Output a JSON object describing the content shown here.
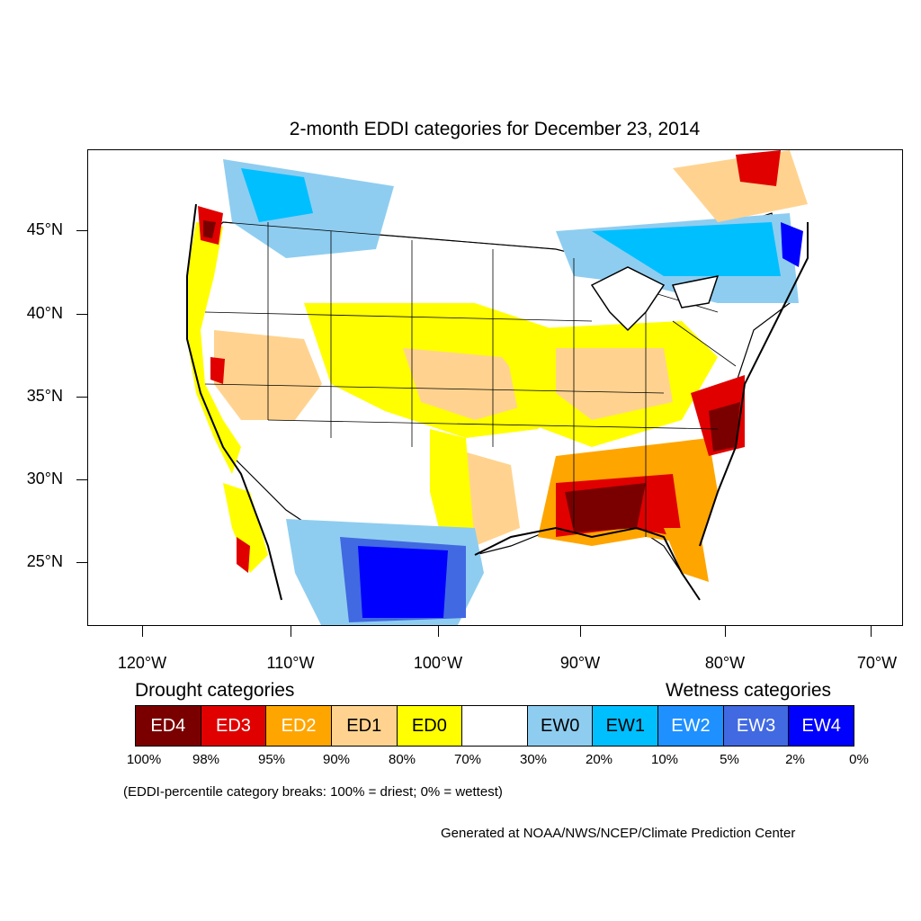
{
  "title": "2-month EDDI categories for December 23, 2014",
  "lat_labels": [
    "45°N",
    "40°N",
    "35°N",
    "30°N",
    "25°N"
  ],
  "lon_labels": [
    "120°W",
    "110°W",
    "100°W",
    "90°W",
    "80°W",
    "70°W"
  ],
  "legend": {
    "drought_heading": "Drought categories",
    "wetness_heading": "Wetness categories",
    "categories": [
      {
        "label": "ED4",
        "color": "#7a0000",
        "text_color": "#ffffff"
      },
      {
        "label": "ED3",
        "color": "#e00000",
        "text_color": "#ffffff"
      },
      {
        "label": "ED2",
        "color": "#ffa500",
        "text_color": "#ffffff"
      },
      {
        "label": "ED1",
        "color": "#ffd38f",
        "text_color": "#000000"
      },
      {
        "label": "ED0",
        "color": "#ffff00",
        "text_color": "#000000"
      },
      {
        "label": "",
        "color": "#ffffff",
        "text_color": "#000000"
      },
      {
        "label": "EW0",
        "color": "#8ecdf0",
        "text_color": "#000000"
      },
      {
        "label": "EW1",
        "color": "#00bfff",
        "text_color": "#000000"
      },
      {
        "label": "EW2",
        "color": "#1e90ff",
        "text_color": "#ffffff"
      },
      {
        "label": "EW3",
        "color": "#4169e1",
        "text_color": "#ffffff"
      },
      {
        "label": "EW4",
        "color": "#0000ff",
        "text_color": "#ffffff"
      }
    ],
    "breaks": [
      "100%",
      "98%",
      "95%",
      "90%",
      "80%",
      "70%",
      "30%",
      "20%",
      "10%",
      "5%",
      "2%",
      "0%"
    ]
  },
  "note": "(EDDI-percentile category breaks: 100% = driest; 0% = wettest)",
  "credit": "Generated at NOAA/NWS/NCEP/Climate Prediction Center"
}
